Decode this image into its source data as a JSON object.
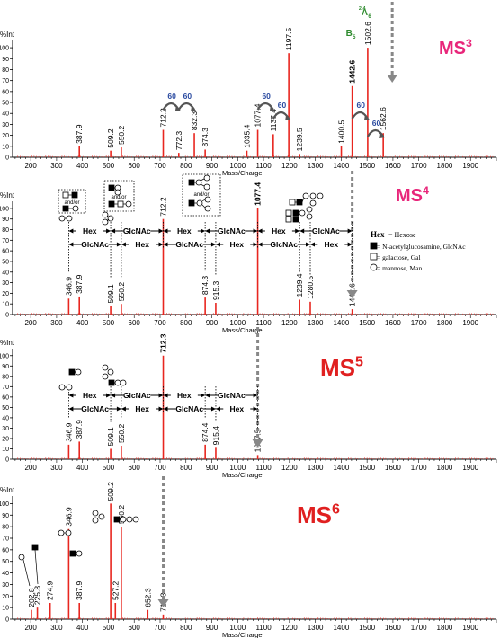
{
  "colors": {
    "peak": "#e8261f",
    "axis": "#000000",
    "arrow": "#888888",
    "ms3_title": "#e8267a",
    "ms_title": "#e02020",
    "gap_label": "#2a4aa0",
    "ion_label": "#2e8b2e"
  },
  "shared_axes": {
    "xlabel": "Mass/Charge",
    "ylabel": "%Int",
    "xlim": [
      130,
      2000
    ],
    "ylim": [
      0,
      105
    ],
    "xticks": [
      200,
      300,
      400,
      500,
      600,
      700,
      800,
      900,
      1000,
      1100,
      1200,
      1300,
      1400,
      1500,
      1600,
      1700,
      1800,
      1900
    ],
    "yticks": [
      0,
      10,
      20,
      30,
      40,
      50,
      60,
      70,
      80,
      90,
      100
    ]
  },
  "legend": {
    "hex_key": "Hex",
    "hex_text": " = Hexose",
    "glcnac_text": " = N-acetylglucosamine, GlcNAc",
    "gal_text": " = galactose, Gal",
    "man_text": " = mannose, Man"
  },
  "glyph_text": {
    "and_or": "and/or"
  },
  "chart_data": [
    {
      "type": "bar",
      "title": "MS3",
      "peaks": [
        {
          "x": 387.9,
          "y": 10,
          "label": "387.9"
        },
        {
          "x": 509.2,
          "y": 6,
          "label": "509.2"
        },
        {
          "x": 550.2,
          "y": 9,
          "label": "550.2"
        },
        {
          "x": 712.2,
          "y": 25,
          "label": "712.2"
        },
        {
          "x": 772.3,
          "y": 4,
          "label": "772.3"
        },
        {
          "x": 832.3,
          "y": 22,
          "label": "832.3"
        },
        {
          "x": 874.3,
          "y": 7,
          "label": "874.3"
        },
        {
          "x": 1035.4,
          "y": 6,
          "label": "1035.4"
        },
        {
          "x": 1077.4,
          "y": 25,
          "label": "1077.4"
        },
        {
          "x": 1137.4,
          "y": 21,
          "label": "1137.4"
        },
        {
          "x": 1197.5,
          "y": 95,
          "label": "1197.5"
        },
        {
          "x": 1239.5,
          "y": 3,
          "label": "1239.5"
        },
        {
          "x": 1400.5,
          "y": 10,
          "label": "1400.5"
        },
        {
          "x": 1442.6,
          "y": 65,
          "label": "1442.6"
        },
        {
          "x": 1502.6,
          "y": 100,
          "label": "1502.6"
        },
        {
          "x": 1562.6,
          "y": 22,
          "label": "1562.6"
        }
      ],
      "gaps": [
        {
          "x1": 712.2,
          "x2": 772.3,
          "label": "60"
        },
        {
          "x1": 772.3,
          "x2": 832.3,
          "label": "60"
        },
        {
          "x1": 1077.4,
          "x2": 1137.4,
          "label": "60"
        },
        {
          "x1": 1137.4,
          "x2": 1197.5,
          "label": "60"
        },
        {
          "x1": 1442.6,
          "x2": 1502.6,
          "label": "60"
        },
        {
          "x1": 1502.6,
          "x2": 1562.6,
          "label": "60"
        }
      ],
      "ion_labels": [
        {
          "x": 1442.6,
          "main": "B",
          "sub": "5",
          "sup": ""
        },
        {
          "x": 1502.6,
          "main": "A",
          "sub": "6",
          "sup": "2,4"
        }
      ],
      "precursor": 1562.6
    },
    {
      "type": "bar",
      "title": "MS4",
      "peaks": [
        {
          "x": 346.9,
          "y": 15,
          "label": "346.9"
        },
        {
          "x": 387.9,
          "y": 17,
          "label": "387.9"
        },
        {
          "x": 509.1,
          "y": 8,
          "label": "509.1"
        },
        {
          "x": 550.2,
          "y": 10,
          "label": "550.2"
        },
        {
          "x": 712.2,
          "y": 90,
          "label": "712.2"
        },
        {
          "x": 874.3,
          "y": 16,
          "label": "874.3"
        },
        {
          "x": 915.3,
          "y": 11,
          "label": "915.3"
        },
        {
          "x": 1077.4,
          "y": 100,
          "label": "1077.4"
        },
        {
          "x": 1239.4,
          "y": 14,
          "label": "1239.4"
        },
        {
          "x": 1280.5,
          "y": 12,
          "label": "1280.5"
        },
        {
          "x": 1442.6,
          "y": 5,
          "label": "1442.6"
        }
      ],
      "differences_top": [
        {
          "x1": 346.9,
          "x2": 509.1,
          "label": "Hex"
        },
        {
          "x1": 509.1,
          "x2": 712.2,
          "label": "GlcNAc"
        },
        {
          "x1": 712.2,
          "x2": 874.3,
          "label": "Hex"
        },
        {
          "x1": 874.3,
          "x2": 1077.4,
          "label": "GlcNAc"
        },
        {
          "x1": 1077.4,
          "x2": 1239.4,
          "label": "Hex"
        },
        {
          "x1": 1239.4,
          "x2": 1442.6,
          "label": "GlcNAc"
        }
      ],
      "differences_bottom": [
        {
          "x1": 346.9,
          "x2": 550.2,
          "label": "GlcNAc"
        },
        {
          "x1": 550.2,
          "x2": 712.2,
          "label": "Hex"
        },
        {
          "x1": 712.2,
          "x2": 915.3,
          "label": "GlcNAc"
        },
        {
          "x1": 915.3,
          "x2": 1077.4,
          "label": "Hex"
        },
        {
          "x1": 1077.4,
          "x2": 1280.5,
          "label": "GlcNAc"
        },
        {
          "x1": 1280.5,
          "x2": 1442.6,
          "label": "Hex"
        }
      ],
      "precursor": 1442.6
    },
    {
      "type": "bar",
      "title": "MS5",
      "peaks": [
        {
          "x": 346.9,
          "y": 14,
          "label": "346.9"
        },
        {
          "x": 387.9,
          "y": 17,
          "label": "387.9"
        },
        {
          "x": 509.1,
          "y": 10,
          "label": "509.1"
        },
        {
          "x": 550.2,
          "y": 13,
          "label": "550.2"
        },
        {
          "x": 712.3,
          "y": 100,
          "label": "712.3"
        },
        {
          "x": 874.4,
          "y": 14,
          "label": "874.4"
        },
        {
          "x": 915.4,
          "y": 11,
          "label": "915.4"
        },
        {
          "x": 1077.5,
          "y": 4,
          "label": "1077.5"
        }
      ],
      "differences_top": [
        {
          "x1": 346.9,
          "x2": 509.1,
          "label": "Hex"
        },
        {
          "x1": 509.1,
          "x2": 712.3,
          "label": "GlcNAc"
        },
        {
          "x1": 712.3,
          "x2": 874.4,
          "label": "Hex"
        },
        {
          "x1": 874.4,
          "x2": 1077.5,
          "label": "GlcNAc"
        }
      ],
      "differences_bottom": [
        {
          "x1": 346.9,
          "x2": 550.2,
          "label": "GlcNAc"
        },
        {
          "x1": 550.2,
          "x2": 712.3,
          "label": "Hex"
        },
        {
          "x1": 712.3,
          "x2": 915.4,
          "label": "GlcNAc"
        },
        {
          "x1": 915.4,
          "x2": 1077.5,
          "label": "Hex"
        }
      ],
      "precursor": 1077.5
    },
    {
      "type": "bar",
      "title": "MS6",
      "peaks": [
        {
          "x": 202.8,
          "y": 8,
          "label": "202.8"
        },
        {
          "x": 225.8,
          "y": 10,
          "label": "225.8"
        },
        {
          "x": 274.9,
          "y": 14,
          "label": "274.9"
        },
        {
          "x": 346.9,
          "y": 78,
          "label": "346.9"
        },
        {
          "x": 387.9,
          "y": 14,
          "label": "387.9"
        },
        {
          "x": 509.2,
          "y": 100,
          "label": "509.2"
        },
        {
          "x": 527.2,
          "y": 14,
          "label": "527.2"
        },
        {
          "x": 550.2,
          "y": 80,
          "label": "550.2"
        },
        {
          "x": 652.3,
          "y": 8,
          "label": "652.3"
        },
        {
          "x": 712.3,
          "y": 4,
          "label": "712.3"
        }
      ],
      "precursor": 712.3
    }
  ],
  "titles": [
    {
      "main": "MS",
      "sup": "3"
    },
    {
      "main": "MS",
      "sup": "4"
    },
    {
      "main": "MS",
      "sup": "5"
    },
    {
      "main": "MS",
      "sup": "6"
    }
  ]
}
